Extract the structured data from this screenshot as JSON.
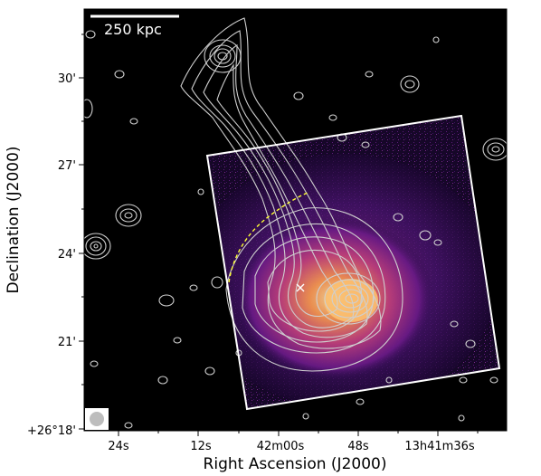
{
  "figure": {
    "xlabel": "Right Ascension (J2000)",
    "ylabel": "Declination (J2000)",
    "x_ticks": [
      "24s",
      "12s",
      "42m00s",
      "48s",
      "13h41m36s"
    ],
    "y_ticks": [
      "30'",
      "27'",
      "24'",
      "21'",
      "+26°18'"
    ],
    "scale_bar_label": "250 kpc",
    "colors": {
      "background": "#000000",
      "contours": "#cfcfcf",
      "box": "#ffffff",
      "arc": "#ffff33",
      "xray_low": "#3b0f70",
      "xray_mid": "#b73779",
      "xray_high": "#fcb96b"
    }
  }
}
